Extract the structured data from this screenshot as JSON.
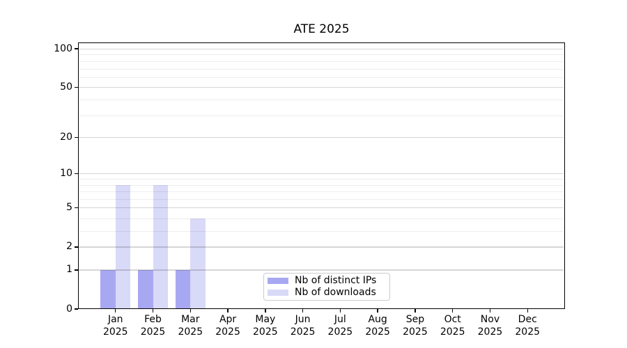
{
  "figure": {
    "background": "#ffffff"
  },
  "chart_data": {
    "type": "bar",
    "title": "ATE 2025",
    "categories": [
      "Jan 2025",
      "Feb 2025",
      "Mar 2025",
      "Apr 2025",
      "May 2025",
      "Jun 2025",
      "Jul 2025",
      "Aug 2025",
      "Sep 2025",
      "Oct 2025",
      "Nov 2025",
      "Dec 2025"
    ],
    "series": [
      {
        "name": "Nb of distinct IPs",
        "color": "#a8a8f2",
        "values": [
          1,
          1,
          1,
          0,
          0,
          0,
          0,
          0,
          0,
          0,
          0,
          0
        ]
      },
      {
        "name": "Nb of downloads",
        "color": "#d9d9f8",
        "values": [
          8,
          8,
          4,
          0,
          0,
          0,
          0,
          0,
          0,
          0,
          0,
          0
        ]
      }
    ],
    "xlabel": "",
    "ylabel": "",
    "yscale": "log1p",
    "ylim": [
      0,
      112
    ],
    "yticks": [
      0,
      1,
      2,
      5,
      10,
      20,
      50,
      100
    ],
    "minor_gridlines": [
      3,
      4,
      6,
      7,
      8,
      9,
      30,
      40,
      60,
      70,
      80,
      90
    ],
    "grid": true,
    "legend_position": "lower center inside plot"
  }
}
